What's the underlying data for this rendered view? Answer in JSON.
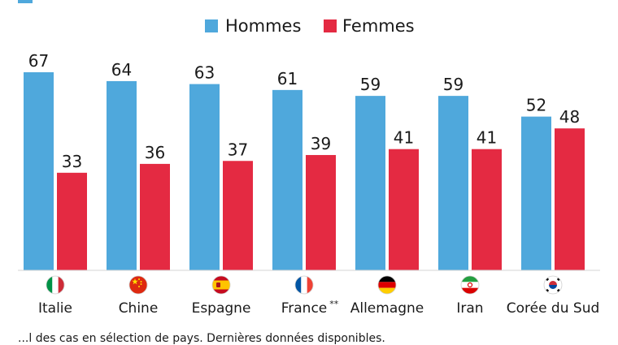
{
  "chart_data": {
    "type": "bar",
    "categories": [
      "Italie",
      "Chine",
      "Espagne",
      "France",
      "Allemagne",
      "Iran",
      "Corée du Sud"
    ],
    "category_notes": [
      "",
      "",
      "",
      "**",
      "",
      "",
      ""
    ],
    "flags": [
      "italy-flag-icon",
      "china-flag-icon",
      "spain-flag-icon",
      "france-flag-icon",
      "germany-flag-icon",
      "iran-flag-icon",
      "south-korea-flag-icon"
    ],
    "series": [
      {
        "name": "Hommes",
        "values": [
          67,
          64,
          63,
          61,
          59,
          59,
          52
        ],
        "color": "#4fa8dc"
      },
      {
        "name": "Femmes",
        "values": [
          33,
          36,
          37,
          39,
          41,
          41,
          48
        ],
        "color": "#e42a42"
      }
    ],
    "ylim": [
      0,
      67
    ],
    "legend": "top-center",
    "grid": false
  },
  "footer": "...l des cas en sélection de pays. Dernières données disponibles."
}
